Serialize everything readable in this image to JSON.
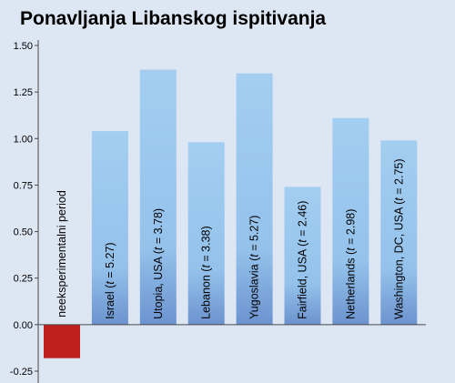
{
  "chart_data": {
    "type": "bar",
    "title": "Ponavljanja Libanskog ispitivanja",
    "xlabel": "",
    "ylabel": "",
    "ylim": [
      -0.25,
      1.5
    ],
    "yticks": [
      -0.25,
      0.0,
      0.25,
      0.5,
      0.75,
      1.0,
      1.25,
      1.5
    ],
    "ytick_labels": [
      "-0.25",
      "0.00",
      "0.25",
      "0.50",
      "0.75",
      "1.00",
      "1.25",
      "1.50"
    ],
    "grid": false,
    "legend": "none",
    "categories": [
      {
        "main": "neeksperimentalni period",
        "t": null,
        "tail": ""
      },
      {
        "main": "Israel (",
        "t": "t",
        "tail": " = 5.27)"
      },
      {
        "main": "Utopia, USA (",
        "t": "t",
        "tail": " = 3.78)"
      },
      {
        "main": "Lebanon (",
        "t": "t",
        "tail": " = 3.38)"
      },
      {
        "main": "Yugoslavia (",
        "t": "t",
        "tail": " = 5.27)"
      },
      {
        "main": "Fairfield, USA (",
        "t": "t",
        "tail": " = 2.46)"
      },
      {
        "main": "Netherlands (",
        "t": "t",
        "tail": " = 2.98)"
      },
      {
        "main": "Washington, DC, USA (",
        "t": "t",
        "tail": " = 2.75)"
      }
    ],
    "values": [
      -0.18,
      1.04,
      1.37,
      0.98,
      1.35,
      0.74,
      1.11,
      0.99
    ],
    "colors": {
      "negative_bar": "#c01f1f",
      "bar_top": "#a3cef1",
      "bar_bottom": "#6c93cf",
      "background": "#dde6f3",
      "axis": "#4a4a4a"
    }
  }
}
